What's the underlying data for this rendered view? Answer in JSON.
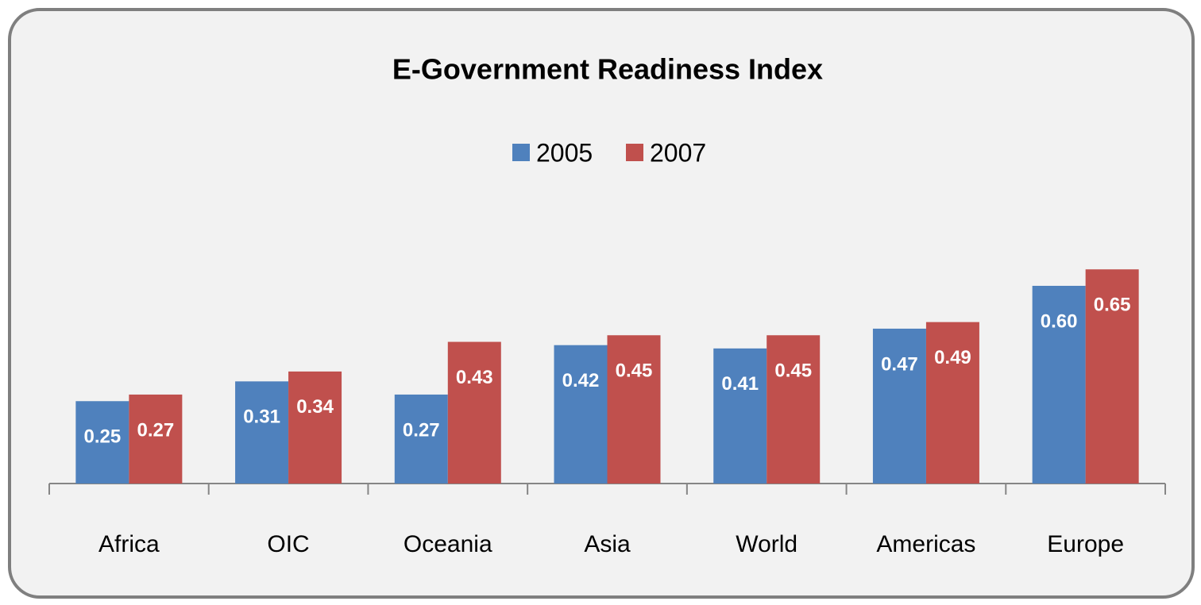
{
  "chart_data": {
    "type": "bar",
    "title": "E-Government Readiness Index",
    "categories": [
      "Africa",
      "OIC",
      "Oceania",
      "Asia",
      "World",
      "Americas",
      "Europe"
    ],
    "series": [
      {
        "name": "2005",
        "color": "#4f81bd",
        "values": [
          0.25,
          0.31,
          0.27,
          0.42,
          0.41,
          0.47,
          0.6
        ],
        "value_labels": [
          "0.25",
          "0.31",
          "0.27",
          "0.42",
          "0.41",
          "0.47",
          "0.60"
        ]
      },
      {
        "name": "2007",
        "color": "#c0504d",
        "values": [
          0.27,
          0.34,
          0.43,
          0.45,
          0.45,
          0.49,
          0.65
        ],
        "value_labels": [
          "0.27",
          "0.34",
          "0.43",
          "0.45",
          "0.45",
          "0.49",
          "0.65"
        ]
      }
    ],
    "legend": "top"
  }
}
